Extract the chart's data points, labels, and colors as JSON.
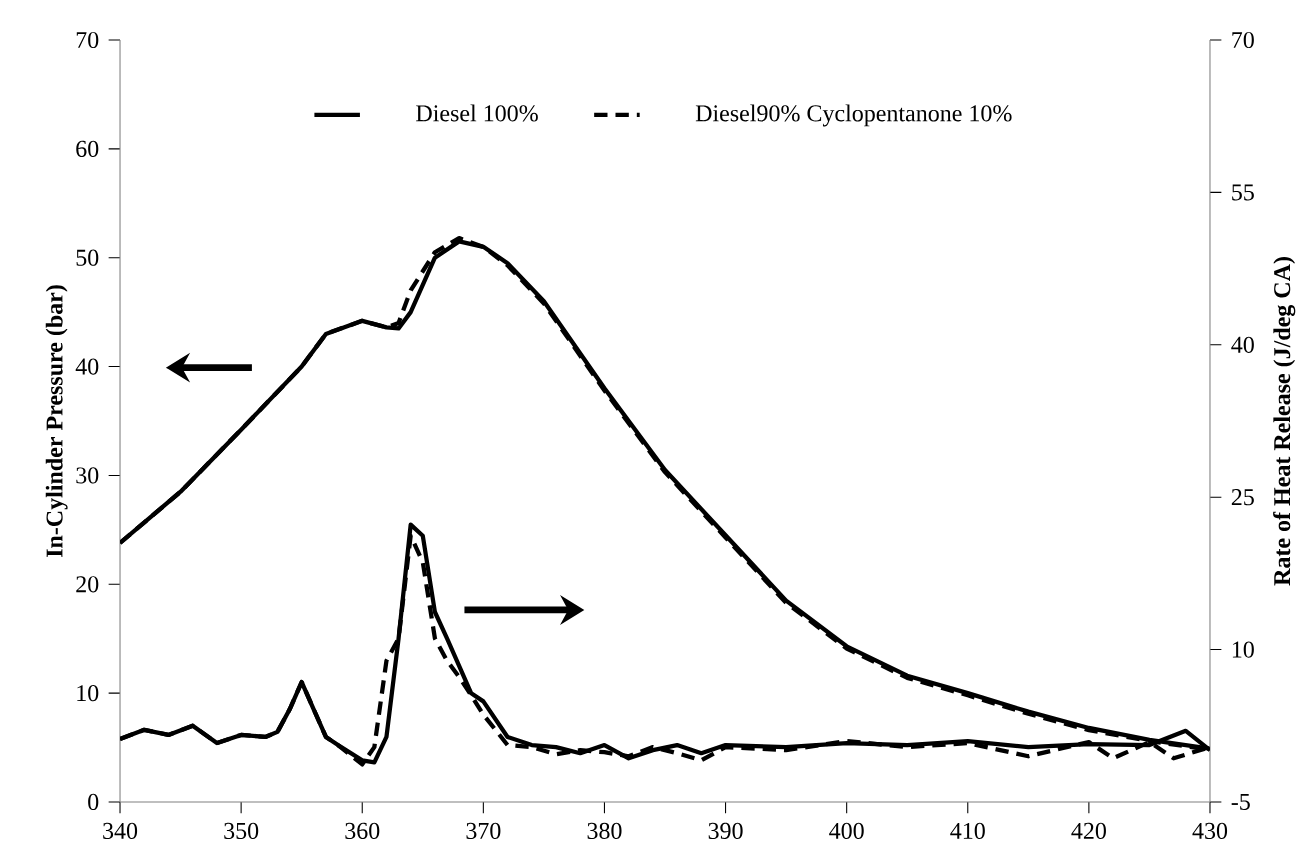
{
  "chart_data": {
    "type": "line",
    "ylabel": "In-Cylinder Pressure (bar)",
    "y2label": "Rate of Heat Release (J/deg CA)",
    "xlim": [
      340,
      430
    ],
    "xticks": [
      340,
      350,
      360,
      370,
      380,
      390,
      400,
      410,
      420,
      430
    ],
    "ylim": [
      0,
      70
    ],
    "yticks": [
      0,
      10,
      20,
      30,
      40,
      50,
      60,
      70
    ],
    "y2lim": [
      -5,
      70
    ],
    "y2ticks": [
      -5,
      10,
      25,
      40,
      55,
      70
    ],
    "legend": "top",
    "marker": "none",
    "grid": false,
    "series": [
      {
        "name": "Diesel 100%",
        "color": "#000000",
        "line_style": "solid",
        "x": [
          340,
          345,
          350,
          355,
          357,
          360,
          362,
          363,
          364,
          366,
          368,
          370,
          372,
          375,
          380,
          385,
          390,
          395,
          400,
          405,
          410,
          415,
          420,
          425,
          430
        ],
        "values": [
          23.8,
          28.5,
          34.2,
          40,
          43,
          44.2,
          43.6,
          43.5,
          45,
          50,
          51.5,
          51,
          49.5,
          46,
          38,
          30.5,
          24.5,
          18.5,
          14.3,
          11.6,
          10,
          8.3,
          6.8,
          5.7,
          4.9
        ]
      },
      {
        "name": "Diesel90% Cyclopentanone 10%",
        "color": "#000000",
        "line_style": "dashed",
        "x": [
          340,
          345,
          350,
          355,
          357,
          360,
          362,
          363,
          364,
          366,
          368,
          370,
          372,
          375,
          380,
          385,
          390,
          395,
          400,
          405,
          410,
          415,
          420,
          425,
          430
        ],
        "values": [
          23.8,
          28.5,
          34.2,
          40,
          43,
          44.2,
          43.6,
          44,
          47,
          50.5,
          51.8,
          51,
          49.3,
          45.8,
          37.8,
          30.3,
          24.3,
          18.3,
          14.1,
          11.4,
          9.8,
          8.1,
          6.6,
          5.6,
          4.8
        ]
      },
      {
        "color": "#000000",
        "line_style": "solid",
        "axis": "y2",
        "x": [
          340,
          342,
          344,
          346,
          348,
          350,
          352,
          353,
          354,
          355,
          356,
          357,
          358,
          360,
          361,
          362,
          363,
          364,
          365,
          366,
          367,
          368,
          369,
          370,
          372,
          374,
          376,
          378,
          380,
          382,
          384,
          386,
          388,
          390,
          395,
          400,
          405,
          410,
          415,
          420,
          425,
          428,
          430
        ],
        "values": [
          1.2,
          2.1,
          1.6,
          2.5,
          0.8,
          1.6,
          1.4,
          1.9,
          4.1,
          6.8,
          4.1,
          1.4,
          0.6,
          -0.9,
          -1.1,
          1.4,
          11.1,
          22.3,
          21.2,
          13.7,
          11.1,
          8.4,
          5.7,
          4.9,
          1.4,
          0.6,
          0.4,
          -0.2,
          0.6,
          -0.7,
          0.1,
          0.6,
          -0.2,
          0.6,
          0.4,
          0.8,
          0.6,
          1.0,
          0.4,
          0.7,
          0.6,
          2.0,
          0.1
        ]
      },
      {
        "color": "#000000",
        "line_style": "dashed",
        "axis": "y2",
        "x": [
          340,
          342,
          344,
          346,
          348,
          350,
          352,
          353,
          354,
          355,
          356,
          357,
          358,
          360,
          361,
          362,
          363,
          364,
          365,
          366,
          367,
          368,
          369,
          370,
          372,
          374,
          376,
          378,
          380,
          382,
          384,
          386,
          388,
          390,
          395,
          400,
          405,
          410,
          415,
          420,
          422,
          425,
          427,
          430
        ],
        "values": [
          1.2,
          2.1,
          1.6,
          2.5,
          0.8,
          1.6,
          1.4,
          1.9,
          4.1,
          6.8,
          4.1,
          1.4,
          0.6,
          -1.3,
          0.4,
          8.9,
          11.1,
          21.2,
          18.6,
          11.1,
          8.9,
          7.3,
          5.5,
          3.6,
          0.6,
          0.4,
          -0.3,
          0.1,
          -0.1,
          -0.5,
          0.4,
          -0.2,
          -0.9,
          0.4,
          0.1,
          1.0,
          0.4,
          0.8,
          -0.5,
          0.9,
          -0.7,
          0.9,
          -0.7,
          0.4
        ]
      }
    ]
  }
}
